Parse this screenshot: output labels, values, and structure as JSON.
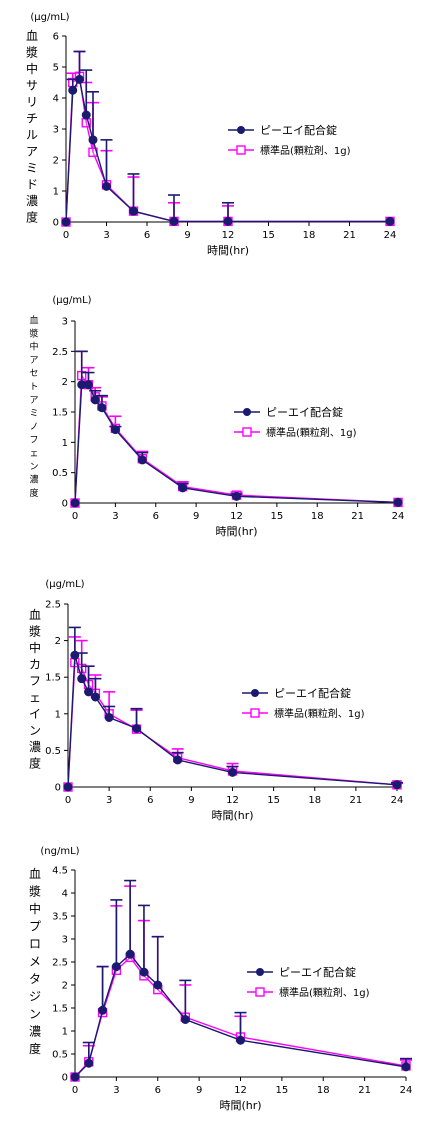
{
  "colors": {
    "series1": "#1a1a6e",
    "series2": "#ff00ff",
    "axis": "#000000"
  },
  "legend_labels": [
    "ピーエイ配合錠",
    "標準品(顆粒剤、1g)"
  ],
  "chart_data": [
    {
      "type": "line",
      "unit": "(μg/mL)",
      "ylabel": "血漿中サリチルアミド濃度",
      "xlabel": "時間(hr)",
      "ylim": [
        0,
        6
      ],
      "yticks": [
        0,
        1,
        2,
        3,
        4,
        5,
        6
      ],
      "xlim": [
        0,
        24
      ],
      "xticks": [
        0,
        3,
        6,
        9,
        12,
        15,
        18,
        21,
        24
      ],
      "series": [
        {
          "name": "ピーエイ配合錠",
          "x": [
            0,
            0.5,
            1,
            1.5,
            2,
            3,
            5,
            8,
            12,
            24
          ],
          "y": [
            0,
            4.25,
            4.6,
            3.45,
            2.65,
            1.15,
            0.35,
            0.02,
            0.02,
            0.02
          ],
          "sd": [
            0,
            0.35,
            0.9,
            1.45,
            1.55,
            1.5,
            1.2,
            0.85,
            0.6,
            0
          ]
        },
        {
          "name": "標準品(顆粒剤、1g)",
          "x": [
            0,
            0.5,
            1,
            1.5,
            2,
            3,
            5,
            8,
            12,
            24
          ],
          "y": [
            0,
            4.5,
            4.7,
            3.2,
            2.25,
            1.2,
            0.35,
            0.02,
            0.02,
            0.02
          ],
          "sd": [
            0,
            0.3,
            0.8,
            1.3,
            1.6,
            1.1,
            1.1,
            0.6,
            0.5,
            0
          ]
        }
      ]
    },
    {
      "type": "line",
      "unit": "(μg/mL)",
      "ylabel": "血漿中アセトアミノフェン濃度",
      "xlabel": "時間(hr)",
      "ylim": [
        0,
        3
      ],
      "yticks": [
        0,
        0.5,
        1,
        1.5,
        2,
        2.5,
        3
      ],
      "xlim": [
        0,
        24
      ],
      "xticks": [
        0,
        3,
        6,
        9,
        12,
        15,
        18,
        21,
        24
      ],
      "series": [
        {
          "name": "ピーエイ配合錠",
          "x": [
            0,
            0.5,
            1,
            1.5,
            2,
            3,
            5,
            8,
            12,
            24
          ],
          "y": [
            0,
            1.95,
            1.95,
            1.7,
            1.57,
            1.21,
            0.71,
            0.25,
            0.11,
            0.01
          ],
          "sd": [
            0,
            0.55,
            0.2,
            0.15,
            0.2,
            0.05,
            0.12,
            0.07,
            0.04,
            0
          ]
        },
        {
          "name": "標準品(顆粒剤、1g)",
          "x": [
            0,
            0.5,
            1,
            1.5,
            2,
            3,
            5,
            8,
            12,
            24
          ],
          "y": [
            0,
            2.1,
            1.95,
            1.75,
            1.6,
            1.23,
            0.73,
            0.27,
            0.13,
            0.01
          ],
          "sd": [
            0,
            0.4,
            0.28,
            0.15,
            0.15,
            0.2,
            0.12,
            0.08,
            0.05,
            0
          ]
        }
      ]
    },
    {
      "type": "line",
      "unit": "(μg/mL)",
      "ylabel": "血漿中カフェイン濃度",
      "xlabel": "時間(hr)",
      "ylim": [
        0,
        2.5
      ],
      "yticks": [
        0,
        0.5,
        1,
        1.5,
        2,
        2.5
      ],
      "xlim": [
        0,
        24
      ],
      "xticks": [
        0,
        3,
        6,
        9,
        12,
        15,
        18,
        21,
        24
      ],
      "series": [
        {
          "name": "ピーエイ配合錠",
          "x": [
            0,
            0.5,
            1,
            1.5,
            2,
            3,
            5,
            8,
            12,
            24
          ],
          "y": [
            0,
            1.8,
            1.48,
            1.3,
            1.23,
            0.95,
            0.8,
            0.37,
            0.2,
            0.03
          ],
          "sd": [
            0,
            0.38,
            0.35,
            0.35,
            0.25,
            0.15,
            0.27,
            0.1,
            0.08,
            0.03
          ]
        },
        {
          "name": "標準品(顆粒剤、1g)",
          "x": [
            0,
            0.5,
            1,
            1.5,
            2,
            3,
            5,
            8,
            12,
            24
          ],
          "y": [
            0,
            1.7,
            1.62,
            1.4,
            1.28,
            1.0,
            0.79,
            0.4,
            0.22,
            0.03
          ],
          "sd": [
            0,
            0.35,
            0.38,
            0.25,
            0.25,
            0.3,
            0.26,
            0.12,
            0.1,
            0.02
          ]
        }
      ]
    },
    {
      "type": "line",
      "unit": "(ng/mL)",
      "ylabel": "血漿中プロメタジン濃度",
      "xlabel": "時間(hr)",
      "ylim": [
        0,
        4.5
      ],
      "yticks": [
        0,
        0.5,
        1,
        1.5,
        2,
        2.5,
        3,
        3.5,
        4,
        4.5
      ],
      "xlim": [
        0,
        24
      ],
      "xticks": [
        0,
        3,
        6,
        9,
        12,
        15,
        18,
        21,
        24
      ],
      "series": [
        {
          "name": "ピーエイ配合錠",
          "x": [
            0,
            1,
            2,
            3,
            4,
            5,
            6,
            8,
            12,
            24
          ],
          "y": [
            0,
            0.3,
            1.45,
            2.4,
            2.67,
            2.28,
            2.0,
            1.25,
            0.8,
            0.22
          ],
          "sd": [
            0,
            0.45,
            0.95,
            1.45,
            1.6,
            1.45,
            1.05,
            0.85,
            0.6,
            0.18
          ]
        },
        {
          "name": "標準品(顆粒剤、1g)",
          "x": [
            0,
            1,
            2,
            3,
            4,
            5,
            6,
            8,
            12,
            24
          ],
          "y": [
            0,
            0.33,
            1.4,
            2.32,
            2.6,
            2.2,
            1.9,
            1.3,
            0.87,
            0.24
          ],
          "sd": [
            0,
            0.35,
            1.0,
            1.4,
            1.55,
            1.2,
            1.15,
            0.7,
            0.45,
            0.13
          ]
        }
      ]
    }
  ]
}
